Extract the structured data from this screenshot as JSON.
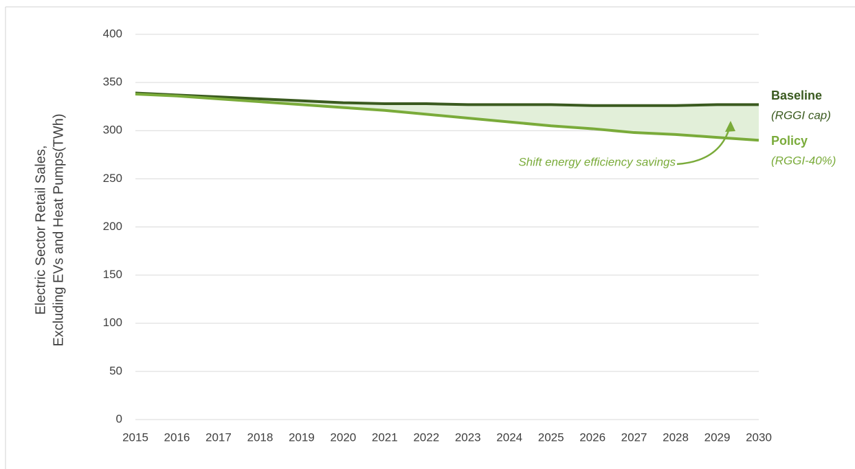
{
  "chart_data": {
    "type": "line",
    "ylabel": [
      "Electric Sector Retail Sales,",
      "Excluding EVs and Heat Pumps(TWh)"
    ],
    "x": [
      2015,
      2016,
      2017,
      2018,
      2019,
      2020,
      2021,
      2022,
      2023,
      2024,
      2025,
      2026,
      2027,
      2028,
      2029,
      2030
    ],
    "xlim": [
      2015,
      2030
    ],
    "xticks": [
      2015,
      2016,
      2017,
      2018,
      2019,
      2020,
      2021,
      2022,
      2023,
      2024,
      2025,
      2026,
      2027,
      2028,
      2029,
      2030
    ],
    "ylim": [
      0,
      400
    ],
    "yticks": [
      0,
      50,
      100,
      150,
      200,
      250,
      300,
      350,
      400
    ],
    "grid": true,
    "fill_between": "#e2efd9",
    "series": [
      {
        "name": "Baseline",
        "sublabel": "(RGGI cap)",
        "color": "#3a5a1f",
        "values": [
          339,
          337,
          335,
          333,
          331,
          329,
          328,
          328,
          327,
          327,
          327,
          326,
          326,
          326,
          327,
          327
        ]
      },
      {
        "name": "Policy",
        "sublabel": "(RGGI-40%)",
        "color": "#7aab3a",
        "values": [
          338,
          336,
          333,
          330,
          327,
          324,
          321,
          317,
          313,
          309,
          305,
          302,
          298,
          296,
          293,
          290
        ]
      }
    ],
    "annotation": "Shift energy efficiency savings"
  }
}
